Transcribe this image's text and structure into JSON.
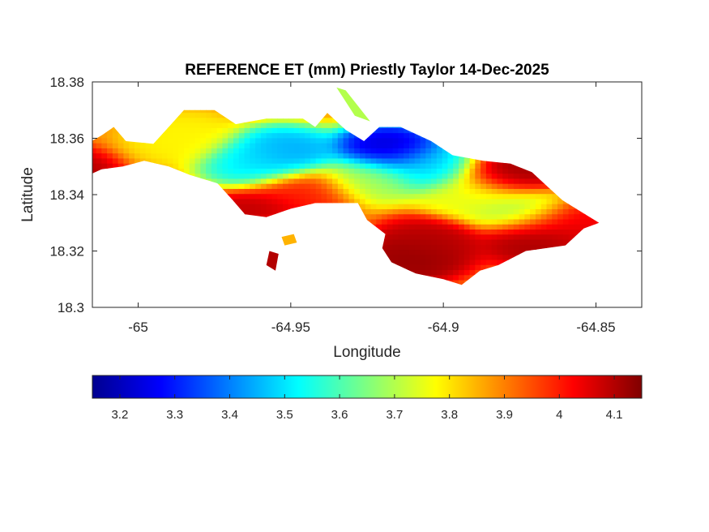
{
  "chart_data": {
    "type": "heatmap",
    "title": "REFERENCE ET (mm) Priestly Taylor 14-Dec-2025",
    "xlabel": "Longitude",
    "ylabel": "Latitude",
    "xlim": [
      -65.015,
      -64.835
    ],
    "ylim": [
      18.3,
      18.38
    ],
    "xticks": [
      -65,
      -64.95,
      -64.9,
      -64.85
    ],
    "xtick_labels": [
      "-65",
      "-64.95",
      "-64.9",
      "-64.85"
    ],
    "yticks": [
      18.3,
      18.32,
      18.34,
      18.36,
      18.38
    ],
    "ytick_labels": [
      "18.3",
      "18.32",
      "18.34",
      "18.36",
      "18.38"
    ],
    "colormap": "jet",
    "clim": [
      3.15,
      4.15
    ],
    "colorbar": {
      "location": "bottom",
      "ticks": [
        3.2,
        3.3,
        3.4,
        3.5,
        3.6,
        3.7,
        3.8,
        3.9,
        4,
        4.1
      ],
      "tick_labels": [
        "3.2",
        "3.3",
        "3.4",
        "3.5",
        "3.6",
        "3.7",
        "3.8",
        "3.9",
        "4",
        "4.1"
      ]
    },
    "grid": false,
    "field": {
      "background_value": 3.88,
      "centers": [
        {
          "lon": -64.952,
          "lat": 18.355,
          "value": 3.42
        },
        {
          "lon": -64.962,
          "lat": 18.352,
          "value": 3.5
        },
        {
          "lon": -64.918,
          "lat": 18.356,
          "value": 3.2
        },
        {
          "lon": -64.905,
          "lat": 18.35,
          "value": 3.48
        },
        {
          "lon": -64.925,
          "lat": 18.346,
          "value": 3.68
        },
        {
          "lon": -64.875,
          "lat": 18.335,
          "value": 3.68
        },
        {
          "lon": -64.89,
          "lat": 18.34,
          "value": 3.75
        },
        {
          "lon": -64.985,
          "lat": 18.36,
          "value": 3.78
        },
        {
          "lon": -65.04,
          "lat": 18.352,
          "value": 4.05
        },
        {
          "lon": -65.025,
          "lat": 18.347,
          "value": 4.12
        },
        {
          "lon": -64.945,
          "lat": 18.341,
          "value": 4.0
        },
        {
          "lon": -64.96,
          "lat": 18.333,
          "value": 4.1
        },
        {
          "lon": -64.905,
          "lat": 18.323,
          "value": 4.1
        },
        {
          "lon": -64.91,
          "lat": 18.318,
          "value": 4.14
        },
        {
          "lon": -64.87,
          "lat": 18.324,
          "value": 4.12
        },
        {
          "lon": -64.86,
          "lat": 18.33,
          "value": 4.05
        },
        {
          "lon": -64.878,
          "lat": 18.347,
          "value": 4.13
        },
        {
          "lon": -64.95,
          "lat": 18.325,
          "value": 3.85
        },
        {
          "lon": -64.955,
          "lat": 18.315,
          "value": 4.08
        }
      ],
      "island_outline": [
        [
          -65.039,
          18.351
        ],
        [
          -65.033,
          18.354
        ],
        [
          -65.028,
          18.357
        ],
        [
          -65.02,
          18.356
        ],
        [
          -65.012,
          18.361
        ],
        [
          -65.008,
          18.364
        ],
        [
          -65.004,
          18.359
        ],
        [
          -64.995,
          18.358
        ],
        [
          -64.99,
          18.364
        ],
        [
          -64.985,
          18.37
        ],
        [
          -64.975,
          18.37
        ],
        [
          -64.968,
          18.365
        ],
        [
          -64.958,
          18.367
        ],
        [
          -64.946,
          18.367
        ],
        [
          -64.942,
          18.364
        ],
        [
          -64.938,
          18.369
        ],
        [
          -64.932,
          18.363
        ],
        [
          -64.926,
          18.359
        ],
        [
          -64.921,
          18.364
        ],
        [
          -64.914,
          18.364
        ],
        [
          -64.904,
          18.359
        ],
        [
          -64.897,
          18.354
        ],
        [
          -64.887,
          18.352
        ],
        [
          -64.878,
          18.351
        ],
        [
          -64.871,
          18.348
        ],
        [
          -64.866,
          18.343
        ],
        [
          -64.861,
          18.338
        ],
        [
          -64.855,
          18.334
        ],
        [
          -64.849,
          18.33
        ],
        [
          -64.854,
          18.328
        ],
        [
          -64.86,
          18.322
        ],
        [
          -64.873,
          18.32
        ],
        [
          -64.882,
          18.315
        ],
        [
          -64.888,
          18.313
        ],
        [
          -64.894,
          18.308
        ],
        [
          -64.9,
          18.31
        ],
        [
          -64.909,
          18.312
        ],
        [
          -64.917,
          18.316
        ],
        [
          -64.92,
          18.321
        ],
        [
          -64.919,
          18.326
        ],
        [
          -64.925,
          18.331
        ],
        [
          -64.928,
          18.337
        ],
        [
          -64.934,
          18.337
        ],
        [
          -64.942,
          18.337
        ],
        [
          -64.95,
          18.335
        ],
        [
          -64.958,
          18.332
        ],
        [
          -64.965,
          18.333
        ],
        [
          -64.969,
          18.338
        ],
        [
          -64.974,
          18.344
        ],
        [
          -64.983,
          18.347
        ],
        [
          -64.99,
          18.35
        ],
        [
          -64.998,
          18.352
        ],
        [
          -65.005,
          18.35
        ],
        [
          -65.012,
          18.349
        ],
        [
          -65.02,
          18.345
        ],
        [
          -65.026,
          18.343
        ],
        [
          -65.034,
          18.348
        ]
      ],
      "islets": [
        {
          "outline": [
            [
              -64.953,
              18.325
            ],
            [
              -64.949,
              18.326
            ],
            [
              -64.948,
              18.323
            ],
            [
              -64.952,
              18.322
            ]
          ],
          "value": 3.85
        },
        {
          "outline": [
            [
              -64.957,
              18.32
            ],
            [
              -64.954,
              18.319
            ],
            [
              -64.955,
              18.313
            ],
            [
              -64.958,
              18.315
            ]
          ],
          "value": 4.1
        },
        {
          "outline": [
            [
              -64.935,
              18.378
            ],
            [
              -64.932,
              18.377
            ],
            [
              -64.924,
              18.366
            ],
            [
              -64.929,
              18.368
            ]
          ],
          "value": 3.7
        }
      ]
    }
  }
}
